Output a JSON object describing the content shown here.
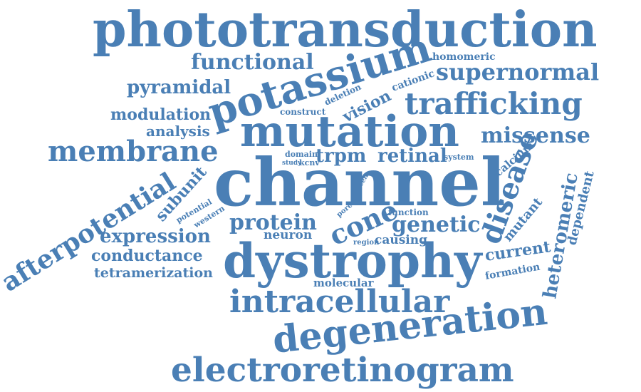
{
  "color": "#4a7fb5",
  "words": [
    "phototransduction",
    "channel",
    "dystrophy",
    "mutation",
    "potassium",
    "degeneration",
    "electroretinogram",
    "intracellular",
    "trafficking",
    "membrane",
    "afterpotential",
    "functional",
    "supernormal",
    "missense",
    "disease",
    "heteromeric",
    "protein",
    "cone",
    "genetic",
    "pyramidal",
    "expression",
    "conductance",
    "tetramerization",
    "modulation",
    "analysis",
    "retinal",
    "trpm",
    "subunit",
    "current",
    "vision",
    "dependent",
    "mutant",
    "neuron",
    "causing",
    "molecular",
    "calcium",
    "formation",
    "homomeric",
    "cationic",
    "construct",
    "deletion",
    "domain",
    "study",
    "kcnv",
    "system",
    "cell",
    "pore",
    "region",
    "function",
    "potential",
    "western"
  ]
}
